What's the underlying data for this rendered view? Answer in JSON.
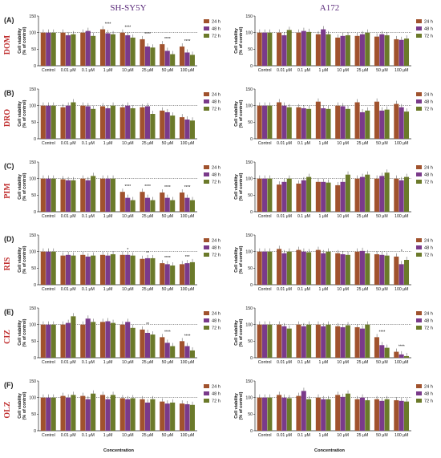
{
  "header": {
    "left_title": "SH-SY5Y",
    "right_title": "A172"
  },
  "colors": {
    "24 h": "#a0522d",
    "48 h": "#7a3a8a",
    "72 h": "#6b7a2a",
    "drug_label": "#c03030",
    "column_title": "#5a2a7a"
  },
  "chart_data": [
    {
      "type": "bar",
      "panel": "(A)",
      "drug": "DOM",
      "cell_line": "SH-SY5Y",
      "ylabel": "Cell viability\n(% of control)",
      "ylim": [
        0,
        150
      ],
      "yticks": [
        0,
        50,
        100,
        150
      ],
      "reference_line": 100,
      "categories": [
        "Control",
        "0.01 μM",
        "0.1 μM",
        "1 μM",
        "10 μM",
        "25 μM",
        "50 μM",
        "100 μM"
      ],
      "series": [
        {
          "name": "24 h",
          "values": [
            100,
            100,
            100,
            110,
            100,
            80,
            65,
            58
          ]
        },
        {
          "name": "48 h",
          "values": [
            100,
            92,
            105,
            98,
            92,
            58,
            45,
            40
          ]
        },
        {
          "name": "72 h",
          "values": [
            100,
            95,
            90,
            95,
            85,
            55,
            35,
            33
          ]
        }
      ],
      "annotations": [
        "****",
        "****",
        "****",
        "****",
        "****"
      ]
    },
    {
      "type": "bar",
      "panel": "(A)",
      "drug": "DOM",
      "cell_line": "A172",
      "ylabel": "Cell viability\n(% of control)",
      "ylim": [
        0,
        150
      ],
      "yticks": [
        0,
        50,
        100,
        150
      ],
      "reference_line": 100,
      "categories": [
        "Control",
        "0.01 μM",
        "0.1 μM",
        "1 μM",
        "10 μM",
        "25 μM",
        "50 μM",
        "100 μM"
      ],
      "series": [
        {
          "name": "24 h",
          "values": [
            100,
            100,
            100,
            95,
            85,
            90,
            88,
            80
          ]
        },
        {
          "name": "48 h",
          "values": [
            100,
            92,
            105,
            110,
            90,
            95,
            95,
            78
          ]
        },
        {
          "name": "72 h",
          "values": [
            100,
            108,
            102,
            95,
            92,
            100,
            92,
            82
          ]
        }
      ]
    },
    {
      "type": "bar",
      "panel": "(B)",
      "drug": "DRO",
      "cell_line": "SH-SY5Y",
      "ylabel": "Cell viability\n(% of control)",
      "ylim": [
        0,
        150
      ],
      "yticks": [
        0,
        50,
        100,
        150
      ],
      "reference_line": 100,
      "categories": [
        "Control",
        "0.01 μM",
        "0.1 μM",
        "1 μM",
        "10 μM",
        "25 μM",
        "50 μM",
        "100 μM"
      ],
      "series": [
        {
          "name": "24 h",
          "values": [
            100,
            95,
            100,
            98,
            95,
            95,
            85,
            65
          ]
        },
        {
          "name": "48 h",
          "values": [
            100,
            100,
            98,
            92,
            100,
            98,
            80,
            58
          ]
        },
        {
          "name": "72 h",
          "values": [
            100,
            110,
            90,
            100,
            92,
            75,
            70,
            55
          ]
        }
      ]
    },
    {
      "type": "bar",
      "panel": "(B)",
      "drug": "DRO",
      "cell_line": "A172",
      "ylabel": "Cell viability\n(% of control)",
      "ylim": [
        0,
        150
      ],
      "yticks": [
        0,
        50,
        100,
        150
      ],
      "reference_line": 100,
      "categories": [
        "Control",
        "0.01 μM",
        "0.1 μM",
        "1 μM",
        "10 μM",
        "25 μM",
        "50 μM",
        "100 μM"
      ],
      "series": [
        {
          "name": "24 h",
          "values": [
            100,
            110,
            95,
            112,
            100,
            110,
            112,
            105
          ]
        },
        {
          "name": "48 h",
          "values": [
            100,
            100,
            92,
            92,
            98,
            80,
            85,
            95
          ]
        },
        {
          "name": "72 h",
          "values": [
            100,
            95,
            90,
            90,
            90,
            85,
            88,
            82
          ]
        }
      ]
    },
    {
      "type": "bar",
      "panel": "(C)",
      "drug": "PIM",
      "cell_line": "SH-SY5Y",
      "ylabel": "Cell viability\n(% of control)",
      "ylim": [
        0,
        150
      ],
      "yticks": [
        0,
        50,
        100,
        150
      ],
      "reference_line": 100,
      "categories": [
        "Control",
        "0.01 μM",
        "0.1 μM",
        "1 μM",
        "10 μM",
        "25 μM",
        "50 μM",
        "100 μM"
      ],
      "series": [
        {
          "name": "24 h",
          "values": [
            100,
            98,
            100,
            100,
            60,
            60,
            58,
            58
          ]
        },
        {
          "name": "48 h",
          "values": [
            100,
            95,
            95,
            100,
            42,
            42,
            42,
            42
          ]
        },
        {
          "name": "72 h",
          "values": [
            100,
            95,
            108,
            100,
            35,
            35,
            35,
            35
          ]
        }
      ],
      "annotations": [
        "****",
        "****",
        "****",
        "****"
      ]
    },
    {
      "type": "bar",
      "panel": "(C)",
      "drug": "PIM",
      "cell_line": "A172",
      "ylabel": "Cell viability\n(% of control)",
      "ylim": [
        0,
        150
      ],
      "yticks": [
        0,
        50,
        100,
        150
      ],
      "reference_line": 100,
      "categories": [
        "Control",
        "0.01 μM",
        "0.1 μM",
        "1 μM",
        "10 μM",
        "25 μM",
        "50 μM",
        "100 μM"
      ],
      "series": [
        {
          "name": "24 h",
          "values": [
            100,
            82,
            85,
            90,
            80,
            100,
            100,
            100
          ]
        },
        {
          "name": "48 h",
          "values": [
            100,
            90,
            95,
            90,
            90,
            105,
            108,
            95
          ]
        },
        {
          "name": "72 h",
          "values": [
            100,
            100,
            105,
            88,
            112,
            112,
            118,
            105
          ]
        }
      ]
    },
    {
      "type": "bar",
      "panel": "(D)",
      "drug": "RIS",
      "cell_line": "SH-SY5Y",
      "ylabel": "Cell viability\n(% of control)",
      "ylim": [
        0,
        150
      ],
      "yticks": [
        0,
        50,
        100,
        150
      ],
      "reference_line": 100,
      "categories": [
        "Control",
        "0.01 μM",
        "0.1 μM",
        "1 μM",
        "10 μM",
        "25 μM",
        "50 μM",
        "100 μM"
      ],
      "series": [
        {
          "name": "24 h",
          "values": [
            100,
            88,
            90,
            90,
            90,
            78,
            65,
            62
          ]
        },
        {
          "name": "48 h",
          "values": [
            100,
            90,
            85,
            88,
            90,
            80,
            62,
            65
          ]
        },
        {
          "name": "72 h",
          "values": [
            100,
            88,
            88,
            92,
            88,
            80,
            58,
            68
          ]
        }
      ],
      "annotations": [
        "*",
        "**",
        "****",
        "***"
      ]
    },
    {
      "type": "bar",
      "panel": "(D)",
      "drug": "RIS",
      "cell_line": "A172",
      "ylabel": "Cell viability\n(% of control)",
      "ylim": [
        0,
        150
      ],
      "yticks": [
        0,
        50,
        100,
        150
      ],
      "reference_line": 100,
      "categories": [
        "Control",
        "0.01 μM",
        "0.1 μM",
        "1 μM",
        "10 μM",
        "25 μM",
        "50 μM",
        "100 μM"
      ],
      "series": [
        {
          "name": "24 h",
          "values": [
            100,
            108,
            105,
            105,
            95,
            100,
            92,
            85
          ]
        },
        {
          "name": "48 h",
          "values": [
            100,
            95,
            100,
            95,
            92,
            102,
            90,
            62
          ]
        },
        {
          "name": "72 h",
          "values": [
            100,
            100,
            98,
            100,
            90,
            95,
            88,
            75
          ]
        }
      ],
      "annotations": [
        "*"
      ]
    },
    {
      "type": "bar",
      "panel": "(E)",
      "drug": "CIZ",
      "cell_line": "SH-SY5Y",
      "ylabel": "Cell viability\n(% of control)",
      "ylim": [
        0,
        150
      ],
      "yticks": [
        0,
        50,
        100,
        150
      ],
      "reference_line": 100,
      "categories": [
        "Control",
        "0.01 μM",
        "0.1 μM",
        "1 μM",
        "10 μM",
        "25 μM",
        "50 μM",
        "100 μM"
      ],
      "series": [
        {
          "name": "24 h",
          "values": [
            100,
            100,
            100,
            108,
            100,
            85,
            62,
            50
          ]
        },
        {
          "name": "48 h",
          "values": [
            100,
            105,
            118,
            110,
            108,
            75,
            45,
            35
          ]
        },
        {
          "name": "72 h",
          "values": [
            100,
            125,
            108,
            105,
            90,
            70,
            35,
            22
          ]
        }
      ],
      "annotations": [
        "**",
        "****",
        "****"
      ]
    },
    {
      "type": "bar",
      "panel": "(E)",
      "drug": "CIZ",
      "cell_line": "A172",
      "ylabel": "Cell viability\n(% of control)",
      "ylim": [
        0,
        150
      ],
      "yticks": [
        0,
        50,
        100,
        150
      ],
      "reference_line": 100,
      "categories": [
        "Control",
        "0.01 μM",
        "0.1 μM",
        "1 μM",
        "10 μM",
        "25 μM",
        "50 μM",
        "100 μM"
      ],
      "series": [
        {
          "name": "24 h",
          "values": [
            100,
            100,
            100,
            100,
            95,
            92,
            62,
            18
          ]
        },
        {
          "name": "48 h",
          "values": [
            100,
            95,
            95,
            95,
            92,
            88,
            38,
            10
          ]
        },
        {
          "name": "72 h",
          "values": [
            100,
            88,
            100,
            100,
            98,
            100,
            30,
            5
          ]
        }
      ],
      "annotations": [
        "****",
        "****"
      ]
    },
    {
      "type": "bar",
      "panel": "(F)",
      "drug": "OLZ",
      "cell_line": "SH-SY5Y",
      "ylabel": "Cell viability\n(% of control)",
      "ylim": [
        0,
        150
      ],
      "yticks": [
        0,
        50,
        100,
        150
      ],
      "reference_line": 100,
      "categories": [
        "Control",
        "0.01 μM",
        "0.1 μM",
        "1 μM",
        "10 μM",
        "25 μM",
        "50 μM",
        "100 μM"
      ],
      "series": [
        {
          "name": "24 h",
          "values": [
            100,
            105,
            105,
            108,
            98,
            95,
            88,
            82
          ]
        },
        {
          "name": "48 h",
          "values": [
            100,
            100,
            95,
            95,
            95,
            85,
            82,
            80
          ]
        },
        {
          "name": "72 h",
          "values": [
            100,
            108,
            112,
            108,
            98,
            95,
            85,
            78
          ]
        }
      ]
    },
    {
      "type": "bar",
      "panel": "(F)",
      "drug": "OLZ",
      "cell_line": "A172",
      "ylabel": "Cell viability\n(% of control)",
      "ylim": [
        0,
        150
      ],
      "yticks": [
        0,
        50,
        100,
        150
      ],
      "reference_line": 100,
      "categories": [
        "Control",
        "0.01 μM",
        "0.1 μM",
        "1 μM",
        "10 μM",
        "25 μM",
        "50 μM",
        "100 μM"
      ],
      "series": [
        {
          "name": "24 h",
          "values": [
            100,
            108,
            105,
            100,
            108,
            95,
            95,
            92
          ]
        },
        {
          "name": "48 h",
          "values": [
            100,
            100,
            120,
            95,
            102,
            100,
            90,
            90
          ]
        },
        {
          "name": "72 h",
          "values": [
            100,
            98,
            95,
            95,
            112,
            92,
            95,
            88
          ]
        }
      ]
    }
  ],
  "xlabel": "Concentration",
  "legend": [
    "24 h",
    "48 h",
    "72 h"
  ]
}
